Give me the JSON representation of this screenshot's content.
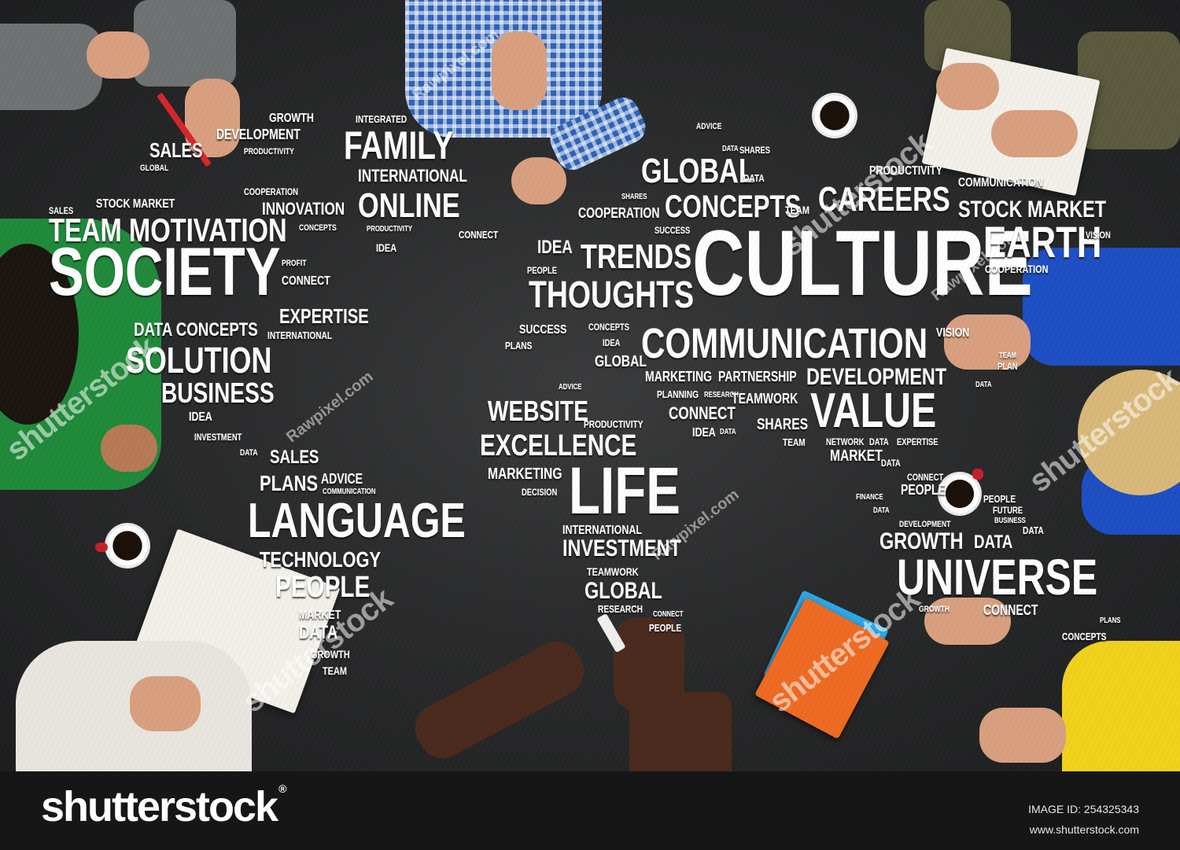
{
  "photo": {
    "words": [
      {
        "text": "GROWTH",
        "size": 16
      },
      {
        "text": "DEVELOPMENT",
        "size": 18
      },
      {
        "text": "SALES",
        "size": 26
      },
      {
        "text": "PRODUCTIVITY",
        "size": 11
      },
      {
        "text": "GLOBAL",
        "size": 11
      },
      {
        "text": "INTEGRATED",
        "size": 13
      },
      {
        "text": "FAMILY",
        "size": 50
      },
      {
        "text": "INTERNATIONAL",
        "size": 22
      },
      {
        "text": "ONLINE",
        "size": 44
      },
      {
        "text": "PRODUCTIVITY",
        "size": 10
      },
      {
        "text": "IDEA",
        "size": 14
      },
      {
        "text": "SALES",
        "size": 12
      },
      {
        "text": "STOCK MARKET",
        "size": 16
      },
      {
        "text": "TEAM MOTIVATION",
        "size": 42
      },
      {
        "text": "COOPERATION",
        "size": 12
      },
      {
        "text": "INNOVATION",
        "size": 22
      },
      {
        "text": "CONCEPTS",
        "size": 11
      },
      {
        "text": "CONNECT",
        "size": 13
      },
      {
        "text": "SOCIETY",
        "size": 86
      },
      {
        "text": "PROFIT",
        "size": 11
      },
      {
        "text": "CONNECT",
        "size": 16
      },
      {
        "text": "EXPERTISE",
        "size": 26
      },
      {
        "text": "DATA CONCEPTS",
        "size": 24
      },
      {
        "text": "INTERNATIONAL",
        "size": 13
      },
      {
        "text": "SOLUTION",
        "size": 46
      },
      {
        "text": "BUSINESS",
        "size": 36
      },
      {
        "text": "IDEA",
        "size": 16
      },
      {
        "text": "INVESTMENT",
        "size": 12
      },
      {
        "text": "DATA",
        "size": 11
      },
      {
        "text": "SALES",
        "size": 24
      },
      {
        "text": "PLANS",
        "size": 28
      },
      {
        "text": "ADVICE",
        "size": 18
      },
      {
        "text": "COMMUNICATION",
        "size": 10
      },
      {
        "text": "LANGUAGE",
        "size": 62
      },
      {
        "text": "TECHNOLOGY",
        "size": 28
      },
      {
        "text": "PEOPLE",
        "size": 38
      },
      {
        "text": "MARKET",
        "size": 16
      },
      {
        "text": "DATA",
        "size": 24
      },
      {
        "text": "GROWTH",
        "size": 14
      },
      {
        "text": "TEAM",
        "size": 14
      },
      {
        "text": "ADVICE",
        "size": 11
      },
      {
        "text": "DATA",
        "size": 10
      },
      {
        "text": "SHARES",
        "size": 12
      },
      {
        "text": "GLOBAL",
        "size": 44
      },
      {
        "text": "DATA",
        "size": 13
      },
      {
        "text": "CONCEPTS",
        "size": 40
      },
      {
        "text": "SHARES",
        "size": 10
      },
      {
        "text": "TEAM",
        "size": 14
      },
      {
        "text": "COOPERATION",
        "size": 18
      },
      {
        "text": "CAREERS",
        "size": 44
      },
      {
        "text": "PRODUCTIVITY",
        "size": 16
      },
      {
        "text": "COMMUNICATION",
        "size": 16
      },
      {
        "text": "STOCK MARKET",
        "size": 30
      },
      {
        "text": "SUCCESS",
        "size": 12
      },
      {
        "text": "CULTURE",
        "size": 118
      },
      {
        "text": "EARTH",
        "size": 56
      },
      {
        "text": "VISION",
        "size": 12
      },
      {
        "text": "IDEA",
        "size": 24
      },
      {
        "text": "TRENDS",
        "size": 44
      },
      {
        "text": "PEOPLE",
        "size": 12
      },
      {
        "text": "THOUGHTS",
        "size": 48
      },
      {
        "text": "COOPERATION",
        "size": 14
      },
      {
        "text": "SUCCESS",
        "size": 16
      },
      {
        "text": "PLANS",
        "size": 13
      },
      {
        "text": "CONCEPTS",
        "size": 12
      },
      {
        "text": "IDEA",
        "size": 12
      },
      {
        "text": "GLOBAL",
        "size": 20
      },
      {
        "text": "COMMUNICATION",
        "size": 54
      },
      {
        "text": "VISION",
        "size": 16
      },
      {
        "text": "MARKETING",
        "size": 18
      },
      {
        "text": "PARTNERSHIP",
        "size": 18
      },
      {
        "text": "DEVELOPMENT",
        "size": 30
      },
      {
        "text": "PLANNING",
        "size": 13
      },
      {
        "text": "RESEARCH",
        "size": 10
      },
      {
        "text": "TEAMWORK",
        "size": 18
      },
      {
        "text": "VALUE",
        "size": 62
      },
      {
        "text": "CONNECT",
        "size": 22
      },
      {
        "text": "IDEA",
        "size": 16
      },
      {
        "text": "DATA",
        "size": 10
      },
      {
        "text": "SHARES",
        "size": 20
      },
      {
        "text": "TEAM",
        "size": 13
      },
      {
        "text": "NETWORK",
        "size": 12
      },
      {
        "text": "DATA",
        "size": 12
      },
      {
        "text": "EXPERTISE",
        "size": 12
      },
      {
        "text": "MARKET",
        "size": 20
      },
      {
        "text": "TEAM",
        "size": 10
      },
      {
        "text": "PLAN",
        "size": 12
      },
      {
        "text": "DATA",
        "size": 10
      },
      {
        "text": "ADVICE",
        "size": 10
      },
      {
        "text": "WEBSITE",
        "size": 36
      },
      {
        "text": "PRODUCTIVITY",
        "size": 13
      },
      {
        "text": "EXCELLENCE",
        "size": 38
      },
      {
        "text": "MARKETING",
        "size": 20
      },
      {
        "text": "DECISION",
        "size": 12
      },
      {
        "text": "LIFE",
        "size": 84
      },
      {
        "text": "INTERNATIONAL",
        "size": 16
      },
      {
        "text": "INVESTMENT",
        "size": 30
      },
      {
        "text": "TEAMWORK",
        "size": 14
      },
      {
        "text": "GLOBAL",
        "size": 30
      },
      {
        "text": "RESEARCH",
        "size": 13
      },
      {
        "text": "CONNECT",
        "size": 10
      },
      {
        "text": "PEOPLE",
        "size": 13
      },
      {
        "text": "DATA",
        "size": 12
      },
      {
        "text": "CONNECT",
        "size": 12
      },
      {
        "text": "PEOPLE",
        "size": 18
      },
      {
        "text": "FINANCE",
        "size": 10
      },
      {
        "text": "DATA",
        "size": 10
      },
      {
        "text": "PEOPLE",
        "size": 13
      },
      {
        "text": "FUTURE",
        "size": 12
      },
      {
        "text": "BUSINESS",
        "size": 10
      },
      {
        "text": "DATA",
        "size": 13
      },
      {
        "text": "DEVELOPMENT",
        "size": 11
      },
      {
        "text": "GROWTH",
        "size": 30
      },
      {
        "text": "DATA",
        "size": 24
      },
      {
        "text": "UNIVERSE",
        "size": 64
      },
      {
        "text": "GROWTH",
        "size": 11
      },
      {
        "text": "CONNECT",
        "size": 18
      },
      {
        "text": "PLANS",
        "size": 10
      },
      {
        "text": "CONCEPTS",
        "size": 13
      }
    ],
    "watermarks": [
      {
        "text": "Rawpixel.com",
        "kind": "small"
      },
      {
        "text": "shutterstock",
        "kind": "big"
      },
      {
        "text": "Rawpixel.com",
        "kind": "small"
      },
      {
        "text": "shutterstock",
        "kind": "big"
      },
      {
        "text": "Rawpixel.com",
        "kind": "small"
      },
      {
        "text": "shutterstock",
        "kind": "big"
      },
      {
        "text": "shutterstock",
        "kind": "big"
      },
      {
        "text": "Rawpixel.com",
        "kind": "small"
      },
      {
        "text": "shutterstock",
        "kind": "big"
      }
    ]
  },
  "footer": {
    "logo": "shutterstock",
    "logo_mark": "®",
    "image_id_label": "IMAGE ID: 254325343",
    "url": "www.shutterstock.com"
  }
}
